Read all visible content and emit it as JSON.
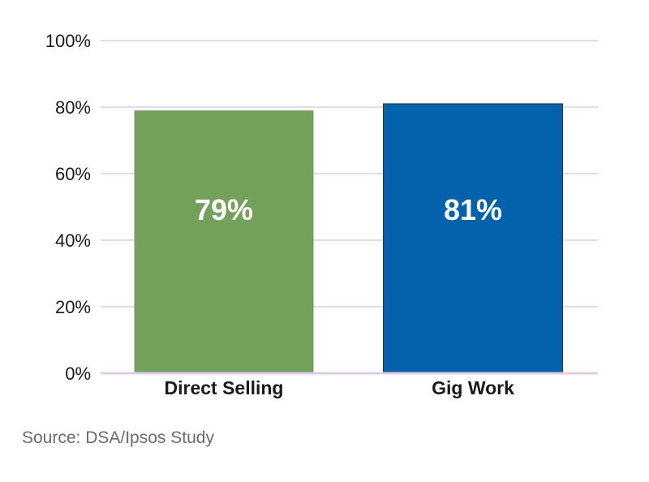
{
  "chart_data": {
    "type": "bar",
    "title": "",
    "xlabel": "",
    "ylabel": "",
    "categories": [
      "Direct Selling",
      "Gig Work"
    ],
    "values": [
      79,
      81
    ],
    "data_labels": [
      "79%",
      "81%"
    ],
    "ylim": [
      0,
      100
    ],
    "yticks": [
      0,
      20,
      40,
      60,
      80,
      100
    ],
    "ytick_labels": [
      "0%",
      "20%",
      "40%",
      "60%",
      "80%",
      "100%"
    ],
    "grid": true,
    "legend": "none"
  },
  "colors": {
    "bars": [
      "#73a05a",
      "#0462ad"
    ],
    "gridline": "#e8d8ea",
    "axis": "#e1cde3",
    "bar_outline": "#333333"
  },
  "source": "Source: DSA/Ipsos Study"
}
